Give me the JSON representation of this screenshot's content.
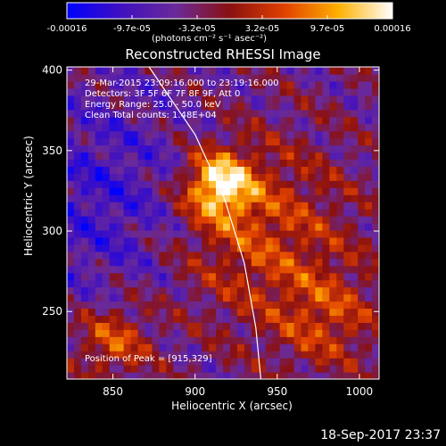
{
  "title": "Reconstructed RHESSI Image",
  "footer_date": "18-Sep-2017 23:37",
  "colorbar": {
    "ticks": [
      "-0.00016",
      "-9.7e-05",
      "-3.2e-05",
      "3.2e-05",
      "9.7e-05",
      "0.00016"
    ],
    "units": "(photons cm⁻² s⁻¹ asec⁻²)",
    "min": -0.00016,
    "max": 0.00016,
    "colors": [
      "#0000ff",
      "#4010c0",
      "#6a2a9a",
      "#8a1010",
      "#e04000",
      "#ffb000",
      "#ffffff"
    ]
  },
  "annotations": {
    "time": "29-Mar-2015 23:09:16.000 to 23:19:16.000",
    "detectors": "Detectors: 3F 5F 6F 7F 8F 9F, Att 0",
    "energy": "Energy Range: 25.0 - 50.0 keV",
    "clean": "Clean     Total counts: 1.48E+04",
    "peak": "Position of Peak = [915,329]"
  },
  "chart_data": {
    "type": "heatmap",
    "title": "Reconstructed RHESSI Image",
    "xlabel": "Heliocentric X (arcsec)",
    "ylabel": "Heliocentric Y (arcsec)",
    "xlim": [
      822,
      1012
    ],
    "ylim": [
      208,
      402
    ],
    "x_ticks": [
      850,
      900,
      950,
      1000
    ],
    "y_ticks": [
      250,
      300,
      350,
      400
    ],
    "peak_position": [
      915,
      329
    ],
    "limb_points": [
      [
        872,
        402
      ],
      [
        900,
        360
      ],
      [
        918,
        320
      ],
      [
        930,
        280
      ],
      [
        937,
        240
      ],
      [
        940,
        208
      ]
    ]
  }
}
